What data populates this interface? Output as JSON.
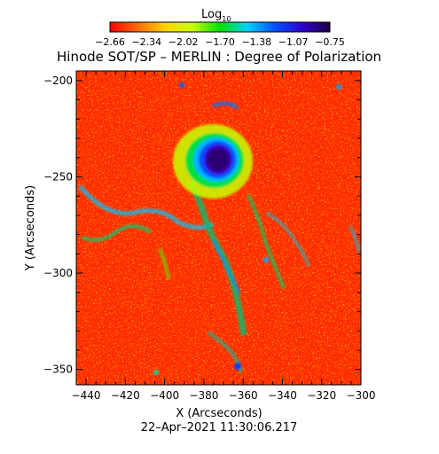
{
  "colorbar": {
    "label_base": "Log",
    "label_sub": "10",
    "ticks": [
      "−2.66",
      "−2.34",
      "−2.02",
      "−1.70",
      "−1.38",
      "−1.07",
      "−0.75"
    ],
    "range": [
      -2.66,
      -0.75
    ],
    "colors": [
      "#ff0000",
      "#ff6a00",
      "#ffd200",
      "#c8ff00",
      "#00e000",
      "#00d2ff",
      "#0050ff",
      "#3000d0",
      "#1a0040"
    ]
  },
  "title": "Hinode SOT/SP – MERLIN : Degree of Polarization",
  "x_axis": {
    "label": "X (Arcseconds)",
    "range": [
      -445,
      -300
    ],
    "ticks": [
      "−440",
      "−420",
      "−400",
      "−380",
      "−360",
      "−340",
      "−320",
      "−300"
    ]
  },
  "y_axis": {
    "label": "Y (Arcseconds)",
    "range": [
      -358,
      -195
    ],
    "ticks": [
      "−200",
      "−250",
      "−300",
      "−350"
    ]
  },
  "timestamp": "22–Apr–2021 11:30:06.217"
}
